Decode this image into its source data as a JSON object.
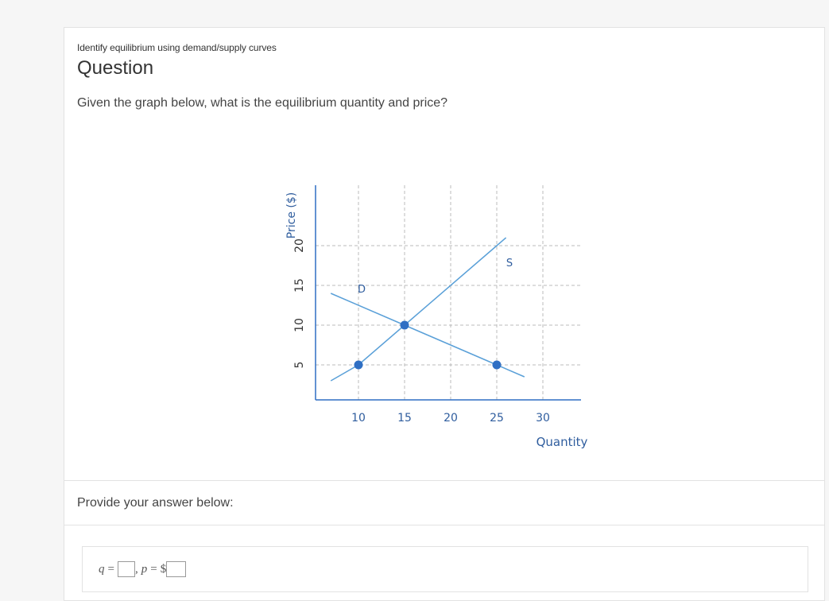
{
  "question": {
    "subtitle": "Identify equilibrium using demand/supply curves",
    "heading": "Question",
    "prompt": "Given the graph below, what is the equilibrium quantity and price?"
  },
  "chart_data": {
    "type": "line",
    "xlabel": "Quantity",
    "ylabel": "Price ($)",
    "x_ticks": [
      10,
      15,
      20,
      25,
      30
    ],
    "y_ticks": [
      5,
      10,
      15,
      20
    ],
    "series": [
      {
        "name": "D",
        "x": [
          7,
          15,
          25,
          28
        ],
        "y": [
          14,
          10,
          5,
          3.5
        ]
      },
      {
        "name": "S",
        "x": [
          7,
          10,
          15,
          25,
          26
        ],
        "y": [
          3,
          5,
          10,
          20,
          21
        ]
      }
    ],
    "points": [
      {
        "x": 10,
        "y": 5
      },
      {
        "x": 15,
        "y": 10
      },
      {
        "x": 25,
        "y": 5
      }
    ],
    "grid": true,
    "colors": {
      "line": "#5aa0d8",
      "point": "#2f6fc4",
      "axis": "#2f6fc4",
      "grid": "#bbbbbb",
      "tick_label": "#2f5d9e"
    }
  },
  "answer": {
    "label": "Provide your answer below:",
    "q_var": "q",
    "p_var": "p",
    "equals": "=",
    "separator": ",",
    "currency": "$"
  }
}
